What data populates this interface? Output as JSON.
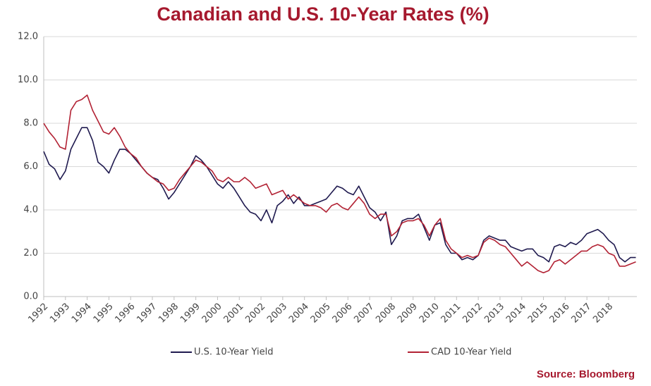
{
  "chart_data": {
    "type": "line",
    "title": "Canadian and U.S. 10-Year Rates (%)",
    "source": "Source: Bloomberg",
    "x": [
      1992,
      1992.25,
      1992.5,
      1992.75,
      1993,
      1993.25,
      1993.5,
      1993.75,
      1994,
      1994.25,
      1994.5,
      1994.75,
      1995,
      1995.25,
      1995.5,
      1995.75,
      1996,
      1996.25,
      1996.5,
      1996.75,
      1997,
      1997.25,
      1997.5,
      1997.75,
      1998,
      1998.25,
      1998.5,
      1998.75,
      1999,
      1999.25,
      1999.5,
      1999.75,
      2000,
      2000.25,
      2000.5,
      2000.75,
      2001,
      2001.25,
      2001.5,
      2001.75,
      2002,
      2002.25,
      2002.5,
      2002.75,
      2003,
      2003.25,
      2003.5,
      2003.75,
      2004,
      2004.25,
      2004.5,
      2004.75,
      2005,
      2005.25,
      2005.5,
      2005.75,
      2006,
      2006.25,
      2006.5,
      2006.75,
      2007,
      2007.25,
      2007.5,
      2007.75,
      2008,
      2008.25,
      2008.5,
      2008.75,
      2009,
      2009.25,
      2009.5,
      2009.75,
      2010,
      2010.25,
      2010.5,
      2010.75,
      2011,
      2011.25,
      2011.5,
      2011.75,
      2012,
      2012.25,
      2012.5,
      2012.75,
      2013,
      2013.25,
      2013.5,
      2013.75,
      2014,
      2014.25,
      2014.5,
      2014.75,
      2015,
      2015.25,
      2015.5,
      2015.75,
      2016,
      2016.25,
      2016.5,
      2016.75,
      2017,
      2017.25,
      2017.5,
      2017.75,
      2018,
      2018.25,
      2018.5,
      2018.75,
      2019,
      2019.25
    ],
    "series": [
      {
        "name": "U.S. 10-Year Yield",
        "color": "#1f1a4f",
        "values": [
          6.7,
          6.1,
          5.9,
          5.4,
          5.8,
          6.8,
          7.3,
          7.8,
          7.8,
          7.2,
          6.2,
          6.0,
          5.7,
          6.3,
          6.8,
          6.8,
          6.6,
          6.3,
          6.0,
          5.7,
          5.5,
          5.4,
          5.0,
          4.5,
          4.8,
          5.2,
          5.6,
          6.0,
          6.5,
          6.3,
          6.0,
          5.6,
          5.2,
          5.0,
          5.3,
          5.0,
          4.6,
          4.2,
          3.9,
          3.8,
          3.5,
          4.0,
          3.4,
          4.2,
          4.4,
          4.7,
          4.3,
          4.6,
          4.2,
          4.2,
          4.3,
          4.4,
          4.5,
          4.8,
          5.1,
          5.0,
          4.8,
          4.7,
          5.1,
          4.6,
          4.1,
          3.9,
          3.5,
          3.9,
          2.4,
          2.8,
          3.5,
          3.6,
          3.6,
          3.8,
          3.2,
          2.6,
          3.3,
          3.4,
          2.4,
          2.0,
          2.0,
          1.7,
          1.8,
          1.7,
          1.9,
          2.6,
          2.8,
          2.7,
          2.6,
          2.6,
          2.3,
          2.2,
          2.1,
          2.2,
          2.2,
          1.9,
          1.8,
          1.6,
          2.3,
          2.4,
          2.3,
          2.5,
          2.4,
          2.6,
          2.9,
          3.0,
          3.1,
          2.9,
          2.6,
          2.4,
          1.8,
          1.6,
          1.8,
          1.8
        ]
      },
      {
        "name": "CAD 10-Year Yield",
        "color": "#b22234",
        "values": [
          8.0,
          7.6,
          7.3,
          6.9,
          6.8,
          8.6,
          9.0,
          9.1,
          9.3,
          8.6,
          8.1,
          7.6,
          7.5,
          7.8,
          7.4,
          6.9,
          6.6,
          6.4,
          6.0,
          5.7,
          5.5,
          5.3,
          5.2,
          4.9,
          5.0,
          5.4,
          5.7,
          6.0,
          6.3,
          6.2,
          6.0,
          5.8,
          5.4,
          5.3,
          5.5,
          5.3,
          5.3,
          5.5,
          5.3,
          5.0,
          5.1,
          5.2,
          4.7,
          4.8,
          4.9,
          4.5,
          4.7,
          4.5,
          4.3,
          4.2,
          4.2,
          4.1,
          3.9,
          4.2,
          4.3,
          4.1,
          4.0,
          4.3,
          4.6,
          4.3,
          3.8,
          3.6,
          3.8,
          3.8,
          2.8,
          3.0,
          3.4,
          3.5,
          3.5,
          3.6,
          3.3,
          2.8,
          3.3,
          3.6,
          2.6,
          2.2,
          2.0,
          1.8,
          1.9,
          1.8,
          1.9,
          2.5,
          2.7,
          2.6,
          2.4,
          2.3,
          2.0,
          1.7,
          1.4,
          1.6,
          1.4,
          1.2,
          1.1,
          1.2,
          1.6,
          1.7,
          1.5,
          1.7,
          1.9,
          2.1,
          2.1,
          2.3,
          2.4,
          2.3,
          2.0,
          1.9,
          1.4,
          1.4,
          1.5,
          1.6
        ]
      }
    ],
    "xlim": [
      1992,
      2019.3
    ],
    "xticks": [
      1992,
      1993,
      1994,
      1995,
      1996,
      1997,
      1998,
      1999,
      2000,
      2001,
      2002,
      2003,
      2004,
      2005,
      2006,
      2007,
      2008,
      2009,
      2010,
      2011,
      2012,
      2013,
      2014,
      2015,
      2016,
      2017,
      2018
    ],
    "ylim": [
      0,
      12
    ],
    "yticks": [
      {
        "value": 0,
        "label": "0.0"
      },
      {
        "value": 2,
        "label": "2.0"
      },
      {
        "value": 4,
        "label": "4.0"
      },
      {
        "value": 6,
        "label": "6.0"
      },
      {
        "value": 8,
        "label": "8.0"
      },
      {
        "value": 10,
        "label": "10.0"
      },
      {
        "value": 12,
        "label": "12.0"
      }
    ],
    "grid": true,
    "legend": "bottom"
  }
}
